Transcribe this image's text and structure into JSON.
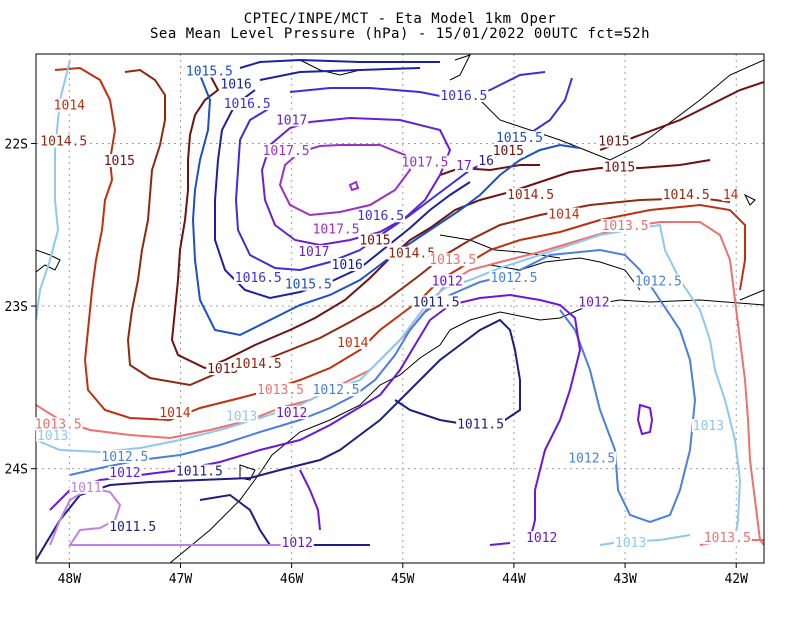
{
  "chart_data": {
    "type": "contour",
    "title": "CPTEC/INPE/MCT -  Eta Model 1km Oper",
    "subtitle": "Sea Mean Level Pressure (hPa) - 15/01/2022 00UTC fct=52h",
    "xlabel": "",
    "ylabel": "",
    "xlim": [
      -48.3,
      -41.75
    ],
    "ylim": [
      -24.58,
      -21.45
    ],
    "x_ticks": [
      {
        "value": -48,
        "label": "48W"
      },
      {
        "value": -47,
        "label": "47W"
      },
      {
        "value": -46,
        "label": "46W"
      },
      {
        "value": -45,
        "label": "45W"
      },
      {
        "value": -44,
        "label": "44W"
      },
      {
        "value": -43,
        "label": "43W"
      },
      {
        "value": -42,
        "label": "42W"
      }
    ],
    "y_ticks": [
      {
        "value": -22,
        "label": "22S"
      },
      {
        "value": -23,
        "label": "23S"
      },
      {
        "value": -24,
        "label": "24S"
      }
    ],
    "grid": true,
    "levels": [
      {
        "value": "1011",
        "color": "#c080e8"
      },
      {
        "value": "1011.5",
        "color": "#1e1e80"
      },
      {
        "value": "1012",
        "color": "#6a18d8"
      },
      {
        "value": "1012.5",
        "color": "#4a7fe0"
      },
      {
        "value": "1013",
        "color": "#90c8f0"
      },
      {
        "value": "1013.5",
        "color": "#f07070"
      },
      {
        "value": "1014",
        "color": "#c03010"
      },
      {
        "value": "1014.5",
        "color": "#902810"
      },
      {
        "value": "1015",
        "color": "#701010"
      },
      {
        "value": "1015.5",
        "color": "#1a50c8"
      },
      {
        "value": "1016",
        "color": "#1e20a0"
      },
      {
        "value": "1016.5",
        "color": "#3a30d8"
      },
      {
        "value": "1017",
        "color": "#6a20d0"
      },
      {
        "value": "1017.5",
        "color": "#9a30c8"
      }
    ],
    "contour_labels": [
      {
        "text": "1015.5",
        "lon": -46.74,
        "lat": -21.57,
        "level": "1015.5"
      },
      {
        "text": "1016",
        "lon": -46.5,
        "lat": -21.65,
        "level": "1016"
      },
      {
        "text": "1016.5",
        "lon": -46.4,
        "lat": -21.77,
        "level": "1016.5"
      },
      {
        "text": "1017",
        "lon": -46.0,
        "lat": -21.87,
        "level": "1017"
      },
      {
        "text": "1017.5",
        "lon": -46.05,
        "lat": -22.06,
        "level": "1017.5"
      },
      {
        "text": "1016.5",
        "lon": -44.45,
        "lat": -21.72,
        "level": "1016.5"
      },
      {
        "text": "1014",
        "lon": -48.0,
        "lat": -21.78,
        "level": "1014"
      },
      {
        "text": "1014.5",
        "lon": -48.05,
        "lat": -22.0,
        "level": "1014.5"
      },
      {
        "text": "1015",
        "lon": -47.55,
        "lat": -22.12,
        "level": "1015"
      },
      {
        "text": "1017.5",
        "lon": -44.8,
        "lat": -22.13,
        "level": "1017.5"
      },
      {
        "text": "17",
        "lon": -44.45,
        "lat": -22.15,
        "level": "1017"
      },
      {
        "text": "16",
        "lon": -44.25,
        "lat": -22.12,
        "level": "1016"
      },
      {
        "text": "1015.5",
        "lon": -43.95,
        "lat": -21.98,
        "level": "1015.5"
      },
      {
        "text": "1015",
        "lon": -44.05,
        "lat": -22.06,
        "level": "1015"
      },
      {
        "text": "1015",
        "lon": -43.1,
        "lat": -22.0,
        "level": "1015"
      },
      {
        "text": "1015",
        "lon": -43.05,
        "lat": -22.16,
        "level": "1015"
      },
      {
        "text": "1014.5",
        "lon": -42.45,
        "lat": -22.33,
        "level": "1014.5"
      },
      {
        "text": "14",
        "lon": -42.05,
        "lat": -22.33,
        "level": "1014"
      },
      {
        "text": "1014.5",
        "lon": -43.85,
        "lat": -22.33,
        "level": "1014.5"
      },
      {
        "text": "1014",
        "lon": -43.55,
        "lat": -22.45,
        "level": "1014"
      },
      {
        "text": "1013.5",
        "lon": -43.0,
        "lat": -22.52,
        "level": "1013.5"
      },
      {
        "text": "1016.5",
        "lon": -45.2,
        "lat": -22.46,
        "level": "1016.5"
      },
      {
        "text": "1017.5",
        "lon": -45.6,
        "lat": -22.54,
        "level": "1017.5"
      },
      {
        "text": "1015",
        "lon": -45.25,
        "lat": -22.61,
        "level": "1015"
      },
      {
        "text": "1017",
        "lon": -45.8,
        "lat": -22.68,
        "level": "1017"
      },
      {
        "text": "1016",
        "lon": -45.5,
        "lat": -22.76,
        "level": "1016"
      },
      {
        "text": "1014.5",
        "lon": -44.92,
        "lat": -22.69,
        "level": "1014.5"
      },
      {
        "text": "1013.5",
        "lon": -44.55,
        "lat": -22.73,
        "level": "1013.5"
      },
      {
        "text": "1016.5",
        "lon": -46.3,
        "lat": -22.84,
        "level": "1016.5"
      },
      {
        "text": "1015.5",
        "lon": -45.85,
        "lat": -22.88,
        "level": "1015.5"
      },
      {
        "text": "1012",
        "lon": -44.6,
        "lat": -22.86,
        "level": "1012"
      },
      {
        "text": "1012.5",
        "lon": -44.0,
        "lat": -22.84,
        "level": "1012.5"
      },
      {
        "text": "1011.5",
        "lon": -44.7,
        "lat": -22.99,
        "level": "1011.5"
      },
      {
        "text": "1012",
        "lon": -43.28,
        "lat": -22.99,
        "level": "1012"
      },
      {
        "text": "1012.5",
        "lon": -42.7,
        "lat": -22.86,
        "level": "1012.5"
      },
      {
        "text": "1014",
        "lon": -45.45,
        "lat": -23.24,
        "level": "1014"
      },
      {
        "text": "1015",
        "lon": -46.62,
        "lat": -23.4,
        "level": "1015"
      },
      {
        "text": "1014.5",
        "lon": -46.3,
        "lat": -23.37,
        "level": "1014.5"
      },
      {
        "text": "1013.5",
        "lon": -46.1,
        "lat": -23.53,
        "level": "1013.5"
      },
      {
        "text": "1012.5",
        "lon": -45.6,
        "lat": -23.53,
        "level": "1012.5"
      },
      {
        "text": "1014",
        "lon": -47.05,
        "lat": -23.67,
        "level": "1014"
      },
      {
        "text": "1013",
        "lon": -46.45,
        "lat": -23.69,
        "level": "1013"
      },
      {
        "text": "1012",
        "lon": -46.0,
        "lat": -23.67,
        "level": "1012"
      },
      {
        "text": "1011.5",
        "lon": -44.3,
        "lat": -23.74,
        "level": "1011.5"
      },
      {
        "text": "1013.5",
        "lon": -48.1,
        "lat": -23.74,
        "level": "1013.5"
      },
      {
        "text": "1013",
        "lon": -48.15,
        "lat": -23.81,
        "level": "1013"
      },
      {
        "text": "1013",
        "lon": -42.25,
        "lat": -23.75,
        "level": "1013"
      },
      {
        "text": "1012.5",
        "lon": -47.5,
        "lat": -23.94,
        "level": "1012.5"
      },
      {
        "text": "1012",
        "lon": -47.5,
        "lat": -24.04,
        "level": "1012"
      },
      {
        "text": "1011.5",
        "lon": -46.83,
        "lat": -24.03,
        "level": "1011.5"
      },
      {
        "text": "1012.5",
        "lon": -43.3,
        "lat": -23.95,
        "level": "1012.5"
      },
      {
        "text": "1011",
        "lon": -47.85,
        "lat": -24.13,
        "level": "1011"
      },
      {
        "text": "1011.5",
        "lon": -47.43,
        "lat": -24.37,
        "level": "1011.5"
      },
      {
        "text": "1012",
        "lon": -45.95,
        "lat": -24.47,
        "level": "1012"
      },
      {
        "text": "1012",
        "lon": -43.75,
        "lat": -24.44,
        "level": "1012"
      },
      {
        "text": "1013",
        "lon": -42.95,
        "lat": -24.47,
        "level": "1013"
      },
      {
        "text": "1013.5",
        "lon": -42.08,
        "lat": -24.44,
        "level": "1013.5"
      }
    ]
  }
}
